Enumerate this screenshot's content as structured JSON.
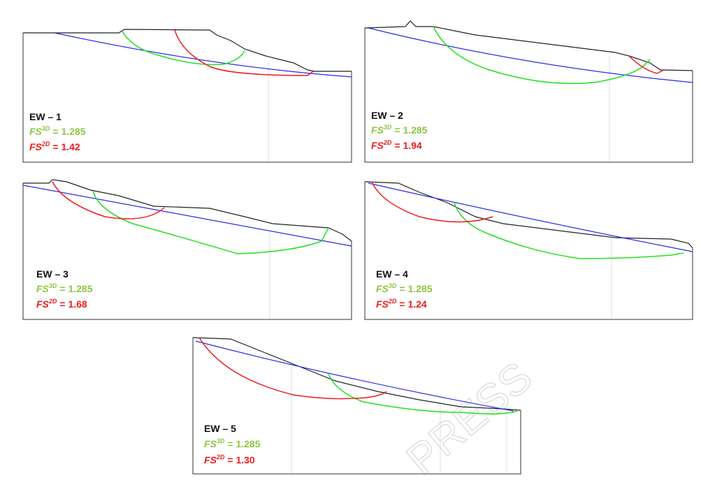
{
  "panels": [
    {
      "name": "EW – 1",
      "fs3d": {
        "symbol": "FS",
        "superscript": "3D",
        "value": "= 1.285"
      },
      "fs2d": {
        "symbol": "FS",
        "superscript": "2D",
        "value": "= 1.42"
      }
    },
    {
      "name": "EW – 2",
      "fs3d": {
        "symbol": "FS",
        "superscript": "3D",
        "value": "= 1.285"
      },
      "fs2d": {
        "symbol": "FS",
        "superscript": "2D",
        "value": "= 1.94"
      }
    },
    {
      "name": "EW – 3",
      "fs3d": {
        "symbol": "FS",
        "superscript": "3D",
        "value": "= 1.285"
      },
      "fs2d": {
        "symbol": "FS",
        "superscript": "2D",
        "value": "= 1.68"
      }
    },
    {
      "name": "EW – 4",
      "fs3d": {
        "symbol": "FS",
        "superscript": "3D",
        "value": "= 1.285"
      },
      "fs2d": {
        "symbol": "FS",
        "superscript": "2D",
        "value": "= 1.24"
      }
    },
    {
      "name": "EW – 5",
      "fs3d": {
        "symbol": "FS",
        "superscript": "3D",
        "value": "= 1.285"
      },
      "fs2d": {
        "symbol": "FS",
        "superscript": "2D",
        "value": "= 1.30"
      }
    }
  ],
  "watermark": "PRESS"
}
